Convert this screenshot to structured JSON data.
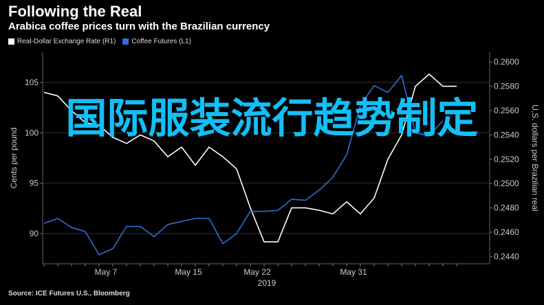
{
  "header": {
    "title": "Following the Real",
    "subtitle": "Arabica coffee prices turn with the Brazilian currency"
  },
  "legend": [
    {
      "label": "Real-Dollar Exchange Rate (R1)",
      "color": "#ffffff"
    },
    {
      "label": "Coffee Futures (L1)",
      "color": "#2f6fd6"
    }
  ],
  "source": "Source: ICE Futures U.S., Bloomberg",
  "overlay_text": "国际服装流行趋势制定",
  "chart_data": {
    "type": "line",
    "title": "Following the Real",
    "subtitle": "Arabica coffee prices turn with the Brazilian currency",
    "year_label": "2019",
    "x_tick_labels": [
      "May 7",
      "May 15",
      "May 22",
      "May 31"
    ],
    "left_axis": {
      "label": "Cents per pound",
      "ticks": [
        "90",
        "95",
        "100",
        "105"
      ],
      "ylim": [
        87,
        108
      ]
    },
    "right_axis": {
      "label": "U.S. dollars per Brazilian real",
      "ticks": [
        "0.2440",
        "0.2460",
        "0.2480",
        "0.2500",
        "0.2520",
        "0.2540",
        "0.2560",
        "0.2580",
        "0.2600"
      ],
      "ylim": [
        0.2434,
        0.2608
      ]
    },
    "series": [
      {
        "name": "Real-Dollar Exchange Rate (R1)",
        "axis": "right",
        "color": "#ffffff",
        "values": [
          0.2575,
          0.2572,
          0.256,
          0.255,
          0.2548,
          0.2538,
          0.2533,
          0.254,
          0.2535,
          0.2522,
          0.253,
          0.2515,
          0.253,
          0.2522,
          0.2512,
          0.248,
          0.2452,
          0.2452,
          0.248,
          0.248,
          0.2478,
          0.2475,
          0.2485,
          0.2475,
          0.2488,
          0.252,
          0.254,
          0.258,
          0.259,
          0.258,
          0.258
        ]
      },
      {
        "name": "Coffee Futures (L1)",
        "axis": "left",
        "color": "#2f6fd6",
        "values": [
          91.0,
          91.5,
          90.6,
          90.2,
          87.9,
          88.5,
          90.7,
          90.7,
          89.7,
          90.9,
          91.2,
          91.5,
          91.5,
          89.0,
          90.0,
          92.2,
          92.2,
          92.3,
          93.4,
          93.3,
          94.3,
          95.6,
          97.8,
          102.7,
          104.7,
          104.0,
          105.7,
          100.0,
          99.7,
          101.2
        ]
      }
    ]
  }
}
